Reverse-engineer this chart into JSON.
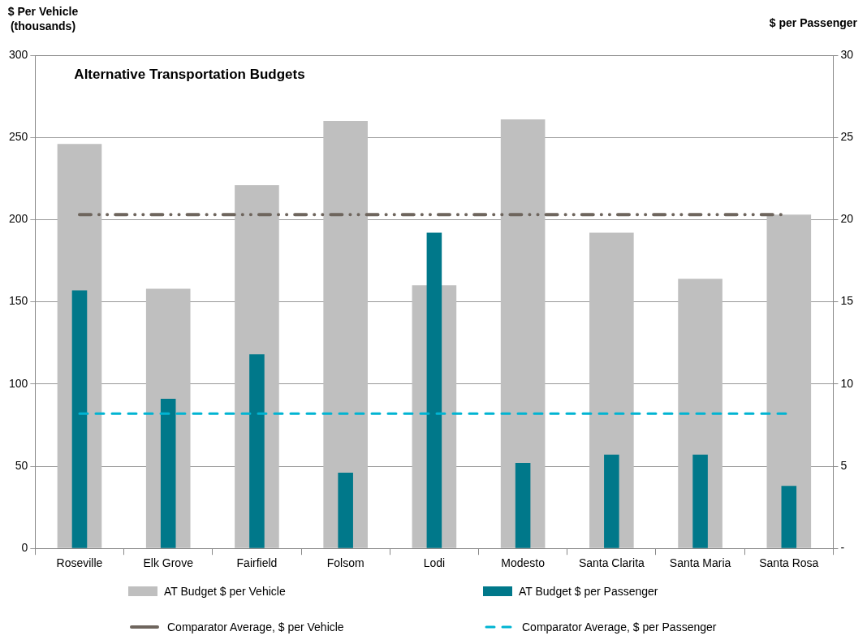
{
  "chart_data": {
    "type": "bar",
    "title": "Alternative Transportation Budgets",
    "ylabel": "$ Per Vehicle\n(thousands)",
    "y2label": "$ per Passenger",
    "categories": [
      "Roseville",
      "Elk Grove",
      "Fairfield",
      "Folsom",
      "Lodi",
      "Modesto",
      "Santa Clarita",
      "Santa Maria",
      "Santa Rosa"
    ],
    "series": [
      {
        "name": "AT Budget $ per Vehicle",
        "color": "#bfbfbf",
        "values": [
          246,
          158,
          221,
          260,
          160,
          261,
          192,
          164,
          203
        ]
      },
      {
        "name": "AT Budget $ per Passenger",
        "color": "#00788a",
        "axis": "y2",
        "values": [
          15.7,
          9.1,
          11.8,
          4.6,
          19.2,
          5.2,
          5.7,
          5.7,
          3.8
        ]
      }
    ],
    "ref_lines": [
      {
        "axis": "y",
        "value": 203,
        "label": "Comparator Average, $ per Vehicle",
        "color": "#6e655d",
        "line_style": "dashdot"
      },
      {
        "axis": "y2",
        "value": 8.2,
        "label": "Comparator Average, $ per Passenger",
        "color": "#00b4d2",
        "line_style": "dashed"
      }
    ],
    "ylim": [
      0,
      300
    ],
    "yticks": [
      0,
      50,
      100,
      150,
      200,
      250,
      300
    ],
    "y2lim": [
      0,
      30
    ],
    "y2ticks": [
      {
        "value": 0,
        "label": "-"
      },
      5,
      10,
      15,
      20,
      25,
      30
    ],
    "grid": "y",
    "legend": "bottom"
  }
}
